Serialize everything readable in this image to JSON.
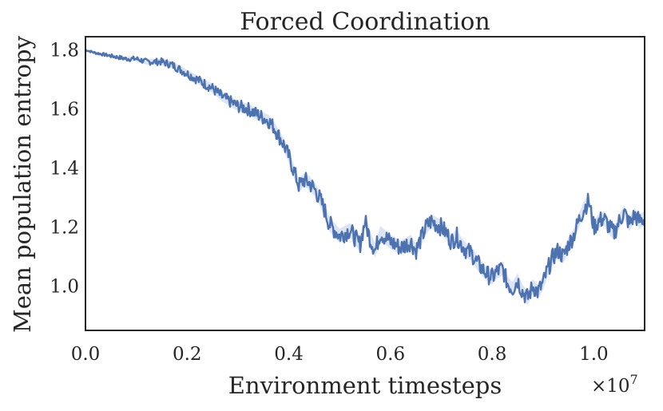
{
  "chart_data": {
    "type": "line",
    "title": "Forced Coordination",
    "xlabel": "Environment timesteps",
    "ylabel": "Mean population entropy",
    "x_offset_label": "×10",
    "x_offset_exponent": "7",
    "xlim": [
      0,
      1.1
    ],
    "ylim": [
      0.85,
      1.845
    ],
    "xticks": [
      0.0,
      0.2,
      0.4,
      0.6,
      0.8,
      1.0
    ],
    "xtick_labels": [
      "0.0",
      "0.2",
      "0.4",
      "0.6",
      "0.8",
      "1.0"
    ],
    "yticks": [
      1.0,
      1.2,
      1.4,
      1.6,
      1.8
    ],
    "ytick_labels": [
      "1.0",
      "1.2",
      "1.4",
      "1.6",
      "1.8"
    ],
    "grid": false,
    "colors": {
      "line": "#4c72b0",
      "band": "#c9d6ec",
      "axes": "#262626"
    },
    "series": [
      {
        "x": [
          0.0,
          0.02,
          0.05,
          0.08,
          0.1,
          0.12,
          0.15,
          0.17,
          0.19,
          0.21,
          0.23,
          0.25,
          0.27,
          0.29,
          0.3,
          0.32,
          0.34,
          0.35,
          0.36,
          0.37,
          0.38,
          0.39,
          0.4,
          0.41,
          0.42,
          0.43,
          0.44,
          0.45,
          0.46,
          0.47,
          0.48,
          0.49,
          0.5,
          0.52,
          0.54,
          0.55,
          0.56,
          0.57,
          0.58,
          0.6,
          0.62,
          0.64,
          0.65,
          0.66,
          0.67,
          0.68,
          0.69,
          0.7,
          0.71,
          0.72,
          0.73,
          0.74,
          0.75,
          0.76,
          0.77,
          0.78,
          0.79,
          0.8,
          0.81,
          0.82,
          0.83,
          0.84,
          0.85,
          0.86,
          0.87,
          0.88,
          0.89,
          0.9,
          0.91,
          0.92,
          0.93,
          0.94,
          0.95,
          0.96,
          0.97,
          0.98,
          0.99,
          1.0,
          1.01,
          1.02,
          1.03,
          1.04,
          1.05,
          1.06,
          1.07,
          1.08,
          1.09,
          1.1
        ],
        "y": [
          1.8,
          1.79,
          1.78,
          1.77,
          1.77,
          1.76,
          1.76,
          1.75,
          1.73,
          1.71,
          1.69,
          1.67,
          1.64,
          1.62,
          1.61,
          1.6,
          1.58,
          1.57,
          1.56,
          1.54,
          1.51,
          1.48,
          1.44,
          1.39,
          1.34,
          1.36,
          1.35,
          1.33,
          1.3,
          1.26,
          1.21,
          1.19,
          1.17,
          1.19,
          1.14,
          1.22,
          1.16,
          1.12,
          1.18,
          1.15,
          1.13,
          1.15,
          1.12,
          1.16,
          1.2,
          1.22,
          1.21,
          1.2,
          1.18,
          1.15,
          1.17,
          1.14,
          1.12,
          1.11,
          1.08,
          1.06,
          1.04,
          1.03,
          1.05,
          1.06,
          1.01,
          0.99,
          1.02,
          0.98,
          0.96,
          1.0,
          0.98,
          1.01,
          1.06,
          1.1,
          1.12,
          1.1,
          1.14,
          1.17,
          1.22,
          1.26,
          1.29,
          1.2,
          1.22,
          1.23,
          1.2,
          1.18,
          1.22,
          1.25,
          1.21,
          1.24,
          1.22,
          1.23
        ]
      }
    ]
  }
}
